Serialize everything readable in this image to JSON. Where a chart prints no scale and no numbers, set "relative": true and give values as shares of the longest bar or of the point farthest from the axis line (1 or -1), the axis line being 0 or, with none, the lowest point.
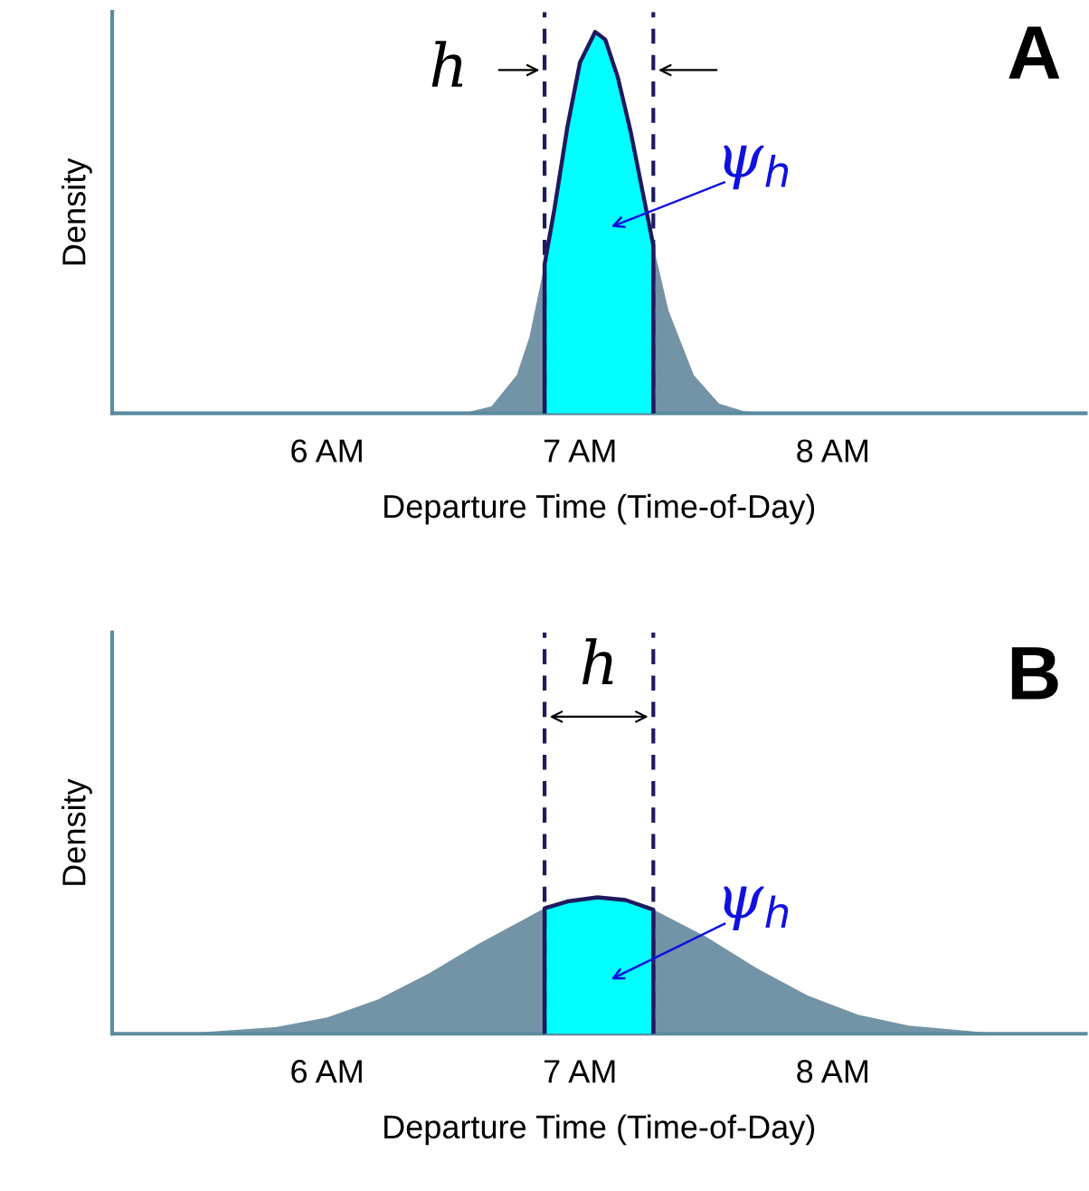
{
  "chart_data": [
    {
      "type": "area",
      "title": "A",
      "ylabel": "Density",
      "xlabel": "Departure Time (Time-of-Day)",
      "relative": true,
      "grid": false,
      "legend": false,
      "xlim": [
        5.15,
        9.0
      ],
      "xticks": [
        {
          "value": 6,
          "label": "6 AM"
        },
        {
          "value": 7,
          "label": "7 AM"
        },
        {
          "value": 8,
          "label": "8 AM"
        }
      ],
      "series": [
        {
          "color": "#7393a7",
          "x": [
            6.45,
            6.55,
            6.65,
            6.75,
            6.8,
            6.86,
            6.9,
            6.95,
            7.0,
            7.06,
            7.1,
            7.15,
            7.2,
            7.29,
            7.35,
            7.45,
            7.55,
            7.65,
            7.75
          ],
          "values": [
            0,
            0.002,
            0.018,
            0.1,
            0.2,
            0.39,
            0.54,
            0.75,
            0.92,
            1,
            0.98,
            0.88,
            0.74,
            0.44,
            0.27,
            0.1,
            0.025,
            0.005,
            0
          ]
        },
        {
          "color": "#00ffff",
          "x": [
            6.86,
            6.9,
            6.95,
            7.0,
            7.06,
            7.1,
            7.15,
            7.2,
            7.29
          ],
          "values": [
            0.39,
            0.54,
            0.75,
            0.92,
            1,
            0.98,
            0.88,
            0.74,
            0.44
          ]
        }
      ],
      "ref_lines": [
        {
          "axis": "x",
          "value": 6.86,
          "color": "#1f1a5e",
          "line_style": "dashed"
        },
        {
          "axis": "x",
          "value": 7.29,
          "color": "#1f1a5e",
          "line_style": "dashed"
        }
      ],
      "annotations": [
        "h",
        "ψ$_{h}$"
      ]
    },
    {
      "type": "area",
      "title": "B",
      "ylabel": "Density",
      "xlabel": "Departure Time (Time-of-Day)",
      "relative": true,
      "grid": false,
      "legend": false,
      "xlim": [
        5.15,
        9.0
      ],
      "xticks": [
        {
          "value": 6,
          "label": "6 AM"
        },
        {
          "value": 7,
          "label": "7 AM"
        },
        {
          "value": 8,
          "label": "8 AM"
        }
      ],
      "series": [
        {
          "color": "#7393a7",
          "x": [
            5.5,
            5.8,
            6.0,
            6.2,
            6.4,
            6.6,
            6.86,
            7.07,
            7.29,
            7.5,
            7.7,
            7.9,
            8.1,
            8.3,
            8.6
          ],
          "values": [
            0.01,
            0.05,
            0.12,
            0.25,
            0.44,
            0.66,
            0.92,
            1,
            0.91,
            0.71,
            0.48,
            0.28,
            0.14,
            0.06,
            0.01
          ]
        },
        {
          "color": "#00ffff",
          "x": [
            6.86,
            6.95,
            7.07,
            7.18,
            7.29
          ],
          "values": [
            0.92,
            0.97,
            1,
            0.98,
            0.91
          ]
        }
      ],
      "ref_lines": [
        {
          "axis": "x",
          "value": 6.86,
          "color": "#1f1a5e",
          "line_style": "dashed"
        },
        {
          "axis": "x",
          "value": 7.29,
          "color": "#1f1a5e",
          "line_style": "dashed"
        }
      ],
      "annotations": [
        "h",
        "ψ$_{h}$"
      ]
    }
  ]
}
